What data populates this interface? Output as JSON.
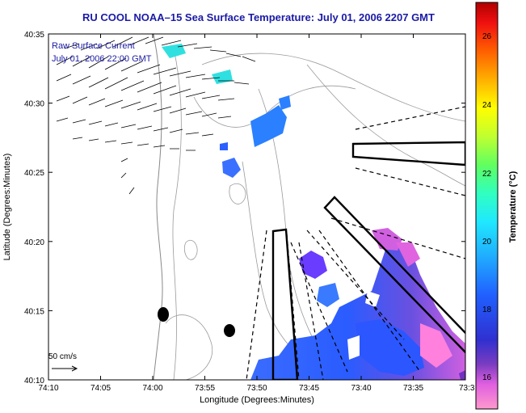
{
  "title": "RU COOL  NOAA–15  Sea Surface Temperature:  July 01, 2006 2207 GMT",
  "legend": {
    "line1": "Raw Surface Current",
    "line2": "July 01, 2006 22:00 GMT"
  },
  "axes": {
    "xlabel": "Longitude (Degrees:Minutes)",
    "ylabel": "Latitude (Degrees:Minutes)",
    "x_ticks": [
      "74:10",
      "74:05",
      "74:00",
      "73:55",
      "73:50",
      "73:45",
      "73:40",
      "73:35",
      "73:3"
    ],
    "y_ticks": [
      "40:35",
      "40:30",
      "40:25",
      "40:20",
      "40:15",
      "40:10"
    ]
  },
  "scale": {
    "label": "50 cm/s"
  },
  "colorbar": {
    "title": "Temperature (°C)",
    "ticks": [
      "26",
      "24",
      "22",
      "20",
      "18",
      "16"
    ],
    "range": [
      15,
      27.3
    ]
  }
}
